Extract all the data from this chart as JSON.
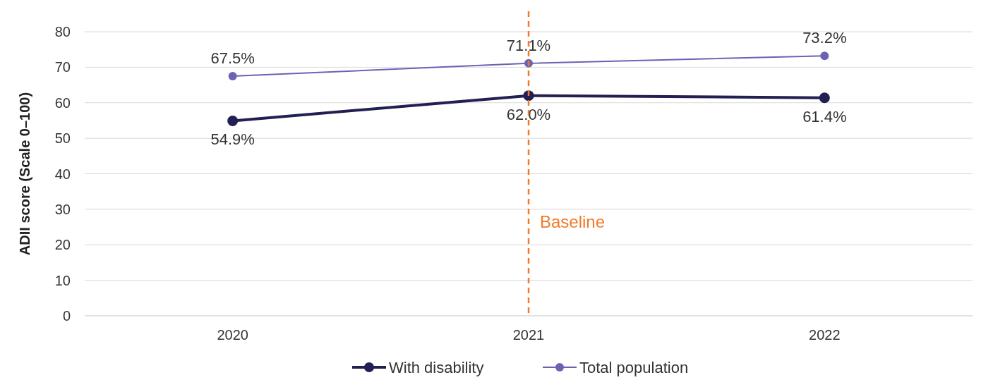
{
  "chart_data": {
    "type": "line",
    "ylabel": "ADII score (Scale 0–100)",
    "categories": [
      "2020",
      "2021",
      "2022"
    ],
    "series": [
      {
        "name": "With disability",
        "color": "#221f52",
        "values": [
          54.9,
          62.0,
          61.4
        ],
        "value_labels": [
          "54.9%",
          "62.0%",
          "61.4%"
        ]
      },
      {
        "name": "Total population",
        "color": "#6b62b3",
        "values": [
          67.5,
          71.1,
          73.2
        ],
        "value_labels": [
          "67.5%",
          "71.1%",
          "73.2%"
        ]
      }
    ],
    "ylim": [
      0,
      80
    ],
    "yticks": [
      0,
      10,
      20,
      30,
      40,
      50,
      60,
      70,
      80
    ],
    "grid": "y",
    "legend": "bottom",
    "marker": "circle",
    "line_style": "solid",
    "ref_lines": [
      {
        "axis": "x",
        "value": "2021",
        "label": "Baseline",
        "color": "#f07a2a",
        "line_style": "dashed"
      }
    ]
  }
}
